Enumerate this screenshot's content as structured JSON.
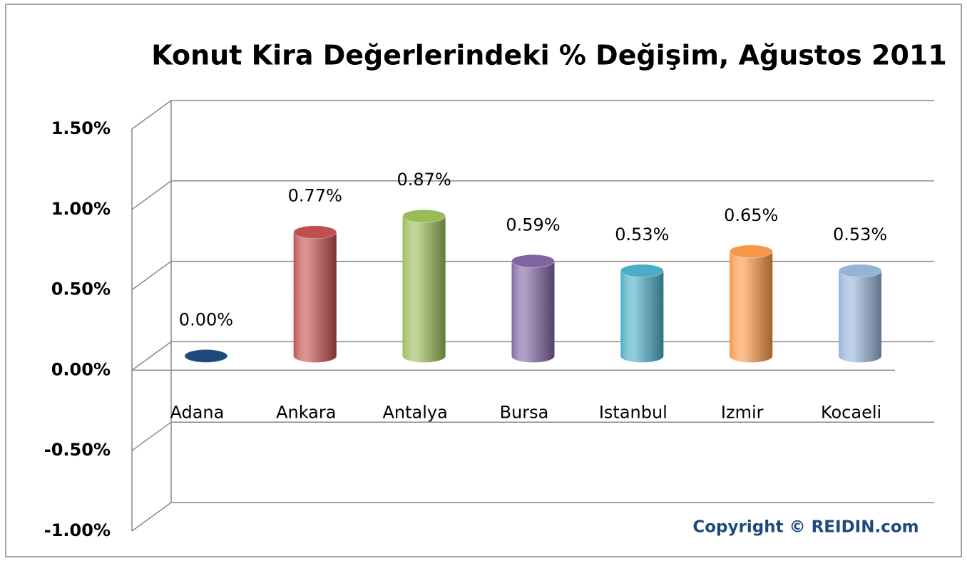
{
  "chart_data": {
    "type": "bar3d",
    "title": "Konut Kira Değerlerindeki % Değişim, Ağustos 2011",
    "categories": [
      "Adana",
      "Ankara",
      "Antalya",
      "Bursa",
      "Istanbul",
      "Izmir",
      "Kocaeli"
    ],
    "values": [
      0,
      0.77,
      0.87,
      0.59,
      0.53,
      0.65,
      0.53
    ],
    "value_labels": [
      "0.00%",
      "0.77%",
      "0.87%",
      "0.59%",
      "0.53%",
      "0.65%",
      "0.53%"
    ],
    "colors": [
      "#1f497d",
      "#c0504d",
      "#9bbb59",
      "#8064a2",
      "#4bacc6",
      "#f79646",
      "#95b3d7"
    ],
    "ylim": [
      -1,
      1.5
    ],
    "yticks": [
      {
        "value": -1,
        "label": "-1.00%"
      },
      {
        "value": -0.5,
        "label": "-0.50%"
      },
      {
        "value": 0,
        "label": "0.00%"
      },
      {
        "value": 0.5,
        "label": "0.50%"
      },
      {
        "value": 1,
        "label": "1.00%"
      },
      {
        "value": 1.5,
        "label": "1.50%"
      }
    ],
    "grid": true,
    "annotation": "Copyright © REIDIN.com"
  }
}
